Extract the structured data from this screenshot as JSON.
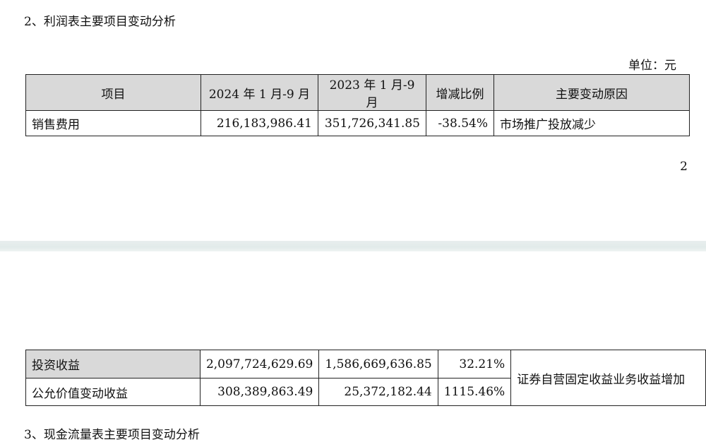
{
  "section2_title": "2、利润表主要项目变动分析",
  "unit_label": "单位：元",
  "table1": {
    "headers": [
      "项目",
      "2024 年 1 月-9 月",
      "2023 年 1 月-9 月",
      "增减比例",
      "主要变动原因"
    ],
    "rows": [
      {
        "item": "销售费用",
        "cur": "216,183,986.41",
        "prev": "351,726,341.85",
        "change": "-38.54%",
        "reason": "市场推广投放减少"
      }
    ]
  },
  "page_number": "2",
  "table2": {
    "rows": [
      {
        "item": "投资收益",
        "cur": "2,097,724,629.69",
        "prev": "1,586,669,636.85",
        "change": "32.21%"
      },
      {
        "item": "公允价值变动收益",
        "cur": "308,389,863.49",
        "prev": "25,372,182.44",
        "change": "1115.46%"
      }
    ],
    "merged_reason": "证券自营固定收益业务收益增加"
  },
  "section3_title": "3、现金流量表主要项目变动分析"
}
